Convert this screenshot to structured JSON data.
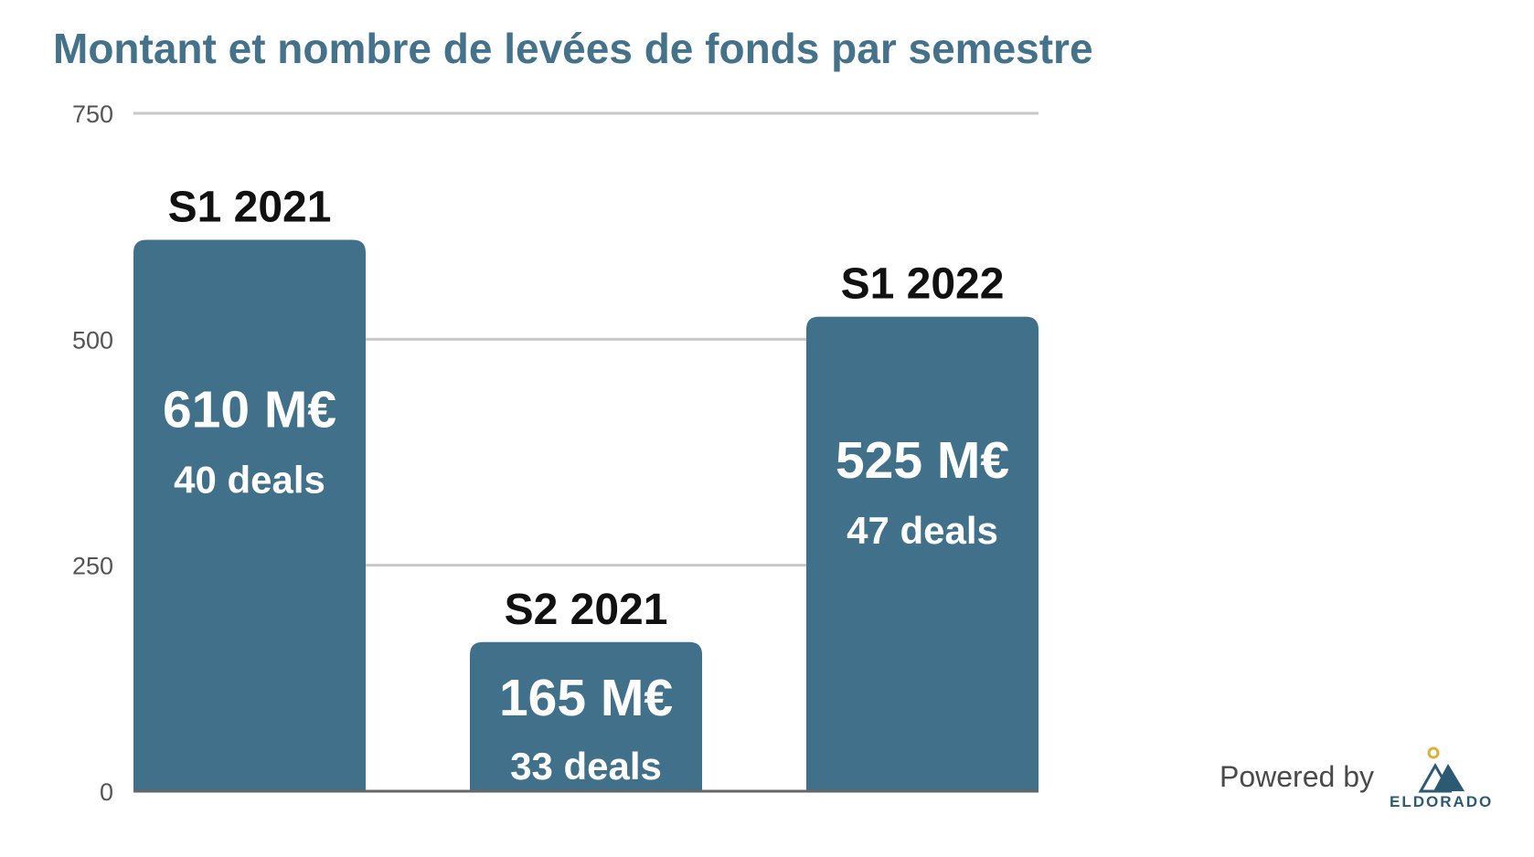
{
  "chart_data": {
    "type": "bar",
    "title": "Montant et nombre de levées de fonds par semestre",
    "categories": [
      "S1 2021",
      "S2 2021",
      "S1 2022"
    ],
    "values": [
      610,
      165,
      525
    ],
    "value_labels": [
      "610 M€",
      "165 M€",
      "525 M€"
    ],
    "deal_labels": [
      "40 deals",
      "33 deals",
      "47 deals"
    ],
    "ylim": [
      0,
      750
    ],
    "yticks": [
      0,
      250,
      500,
      750
    ],
    "grid": true,
    "bar_color": "#41718a"
  },
  "footer": {
    "powered_by": "Powered by",
    "brand": "ELDORADO"
  }
}
